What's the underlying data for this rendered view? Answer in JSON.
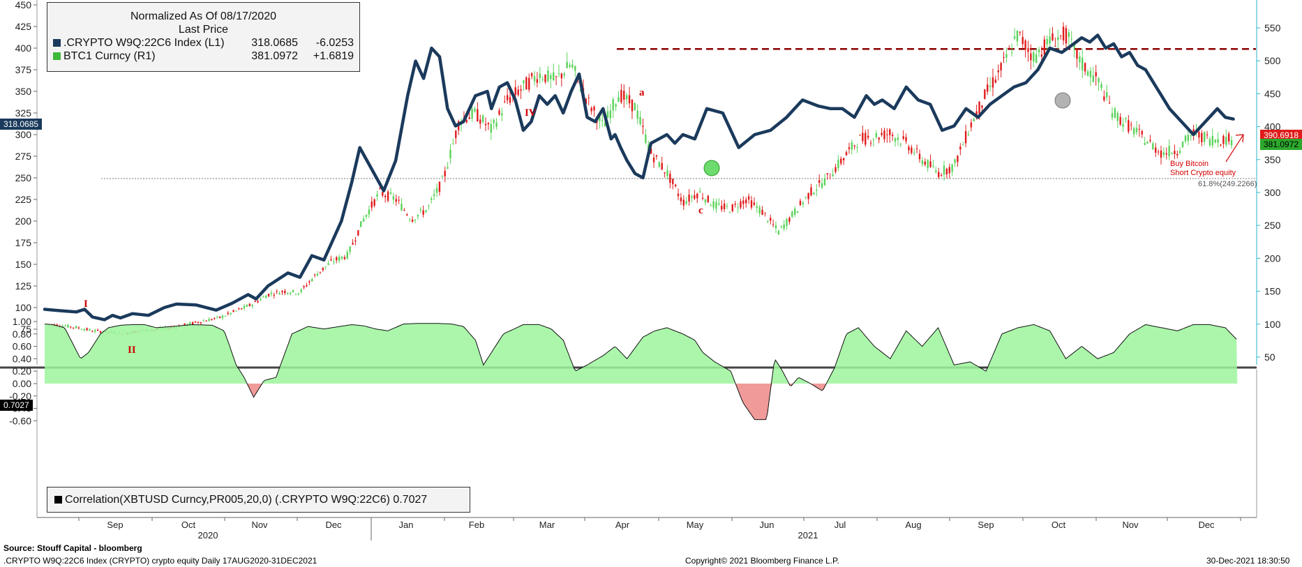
{
  "legend": {
    "title": "Normalized As Of 08/17/2020",
    "subtitle": "Last Price",
    "rows": [
      {
        "name": ".CRYPTO W9Q:22C6 Index  (L1)",
        "last": "318.0685",
        "change": "-6.0253",
        "color": "#1b3a5c"
      },
      {
        "name": "BTC1 Curncy  (R1)",
        "last": "381.0972",
        "change": "+1.6819",
        "color": "#3cb83c"
      }
    ]
  },
  "corr_legend": {
    "text": "Correlation(XBTUSD Curncy,PR005,20,0) (.CRYPTO W9Q:22C6) 0.7027"
  },
  "tags": {
    "left_last": "318.0685",
    "right_last": "390.6918",
    "right_last2": "381.0972",
    "corr_last": "0.7027"
  },
  "annotations": {
    "wave_1": "I",
    "wave_2": "II",
    "wave_4": "IV",
    "wave_a": "a",
    "wave_c": "c",
    "note_line1": "Buy Bitcoin",
    "note_line2": "Short Crypto equity",
    "fib": "61.8%(249.2266)"
  },
  "footer": {
    "source": "Source: Stouff Capital - bloomberg",
    "left": ".CRYPTO W9Q:22C6 Index (CRYPTO) crypto equity  Daily 17AUG2020-31DEC2021",
    "center": "Copyright© 2021 Bloomberg Finance L.P.",
    "right": "30-Dec-2021 18:30:50"
  },
  "colors": {
    "index_line": "#1b3a5c",
    "btc_up": "#5ad35a",
    "btc_down": "#e01b1b",
    "corr_fill_pos": "#9cf59c",
    "corr_fill_neg": "#f08f8f",
    "resistance": "#8b0000",
    "right_axis": "#2ab6c8"
  },
  "chart_data": [
    {
      "type": "line",
      "title": "Normalized As Of 08/17/2020",
      "ylim_left": [
        60,
        450
      ],
      "ylim_right": [
        35,
        600
      ],
      "yticks_left": [
        75,
        100,
        125,
        150,
        175,
        200,
        225,
        250,
        275,
        300,
        325,
        350,
        375,
        400,
        425,
        450
      ],
      "yticks_right": [
        50,
        100,
        150,
        200,
        250,
        300,
        350,
        400,
        450,
        500,
        550
      ],
      "x_months": [
        "Sep",
        "Oct",
        "Nov",
        "Dec",
        "Jan",
        "Feb",
        "Mar",
        "Apr",
        "May",
        "Jun",
        "Jul",
        "Aug",
        "Sep",
        "Oct",
        "Nov",
        "Dec"
      ],
      "x_years": [
        "2020",
        "2021"
      ],
      "fib_level": 249.2266,
      "resistance_level_right": 518,
      "series": [
        {
          "name": ".CRYPTO W9Q:22C6 Index  (L1)",
          "axis": "left",
          "x": [
            0,
            12,
            25,
            40,
            50,
            60,
            75,
            85,
            95,
            110,
            130,
            150,
            165,
            190,
            215,
            235,
            255,
            265,
            280,
            305,
            320,
            335,
            350,
            372,
            385,
            395,
            410,
            425,
            440,
            455,
            465,
            475,
            485,
            495,
            505,
            515,
            525,
            540,
            555,
            560,
            570,
            580,
            590,
            600,
            610,
            620,
            630,
            640,
            650,
            660,
            670,
            680,
            690,
            700,
            710,
            715,
            722,
            730,
            740,
            750,
            760,
            770,
            780,
            790,
            800,
            815,
            830,
            850,
            870,
            890,
            910,
            930,
            950,
            970,
            985,
            1000,
            1015,
            1030,
            1040,
            1050,
            1065,
            1080,
            1095,
            1110,
            1125,
            1140,
            1155,
            1170,
            1185,
            1200,
            1215,
            1230,
            1245,
            1260,
            1275,
            1290,
            1300,
            1310,
            1320,
            1330,
            1340,
            1350,
            1360,
            1370,
            1380,
            1390,
            1400,
            1410,
            1420,
            1430,
            1440,
            1450,
            1460,
            1470,
            1480,
            1490
          ],
          "values": [
            98,
            97,
            96,
            95,
            98,
            89,
            86,
            91,
            88,
            93,
            91,
            100,
            104,
            103,
            97,
            105,
            115,
            110,
            125,
            140,
            135,
            160,
            155,
            200,
            245,
            285,
            260,
            235,
            270,
            345,
            385,
            365,
            400,
            390,
            330,
            310,
            315,
            345,
            350,
            330,
            355,
            360,
            340,
            305,
            315,
            345,
            335,
            345,
            325,
            350,
            370,
            320,
            315,
            330,
            295,
            300,
            285,
            270,
            255,
            250,
            290,
            295,
            300,
            290,
            300,
            295,
            330,
            325,
            285,
            300,
            305,
            320,
            340,
            333,
            330,
            330,
            320,
            345,
            335,
            340,
            330,
            355,
            340,
            335,
            305,
            310,
            330,
            320,
            335,
            345,
            355,
            360,
            375,
            400,
            395,
            405,
            412,
            407,
            415,
            400,
            405,
            390,
            395,
            380,
            375,
            360,
            345,
            330,
            320,
            310,
            300,
            310,
            320,
            330,
            320,
            318
          ]
        },
        {
          "name": "BTC1 Curncy  (R1)",
          "axis": "right",
          "x": [
            0,
            20,
            40,
            60,
            80,
            100,
            120,
            140,
            160,
            180,
            200,
            220,
            240,
            260,
            280,
            300,
            320,
            340,
            360,
            380,
            400,
            420,
            440,
            460,
            480,
            500,
            520,
            540,
            560,
            580,
            600,
            620,
            640,
            660,
            680,
            700,
            720,
            740,
            760,
            780,
            800,
            820,
            840,
            860,
            880,
            900,
            920,
            940,
            960,
            980,
            1000,
            1020,
            1040,
            1060,
            1080,
            1100,
            1120,
            1140,
            1160,
            1180,
            1200,
            1220,
            1240,
            1260,
            1280,
            1300,
            1320,
            1340,
            1360,
            1380,
            1400,
            1420,
            1440,
            1460,
            1490
          ],
          "values": [
            100,
            98,
            95,
            90,
            88,
            86,
            90,
            92,
            95,
            100,
            105,
            110,
            120,
            130,
            145,
            150,
            148,
            175,
            195,
            205,
            260,
            300,
            290,
            260,
            275,
            320,
            410,
            420,
            395,
            440,
            460,
            480,
            470,
            495,
            440,
            400,
            450,
            430,
            360,
            330,
            285,
            300,
            280,
            275,
            290,
            270,
            240,
            270,
            300,
            320,
            350,
            380,
            385,
            390,
            375,
            350,
            330,
            340,
            400,
            450,
            490,
            540,
            505,
            530,
            540,
            495,
            470,
            420,
            400,
            380,
            360,
            365,
            390,
            381,
            381
          ]
        }
      ]
    },
    {
      "type": "area",
      "title": "",
      "ylim": [
        -0.7,
        1.05
      ],
      "yticks": [
        1.0,
        0.8,
        0.6,
        0.4,
        0.2,
        0.0,
        -0.2,
        -0.4,
        -0.6
      ],
      "series": [
        {
          "name": "Correlation(XBTUSD Curncy,PR005,20,0) (.CRYPTO W9Q:22C6)",
          "x": [
            0,
            10,
            25,
            35,
            45,
            55,
            70,
            80,
            95,
            110,
            125,
            140,
            160,
            185,
            210,
            225,
            232,
            240,
            250,
            262,
            275,
            290,
            310,
            330,
            350,
            370,
            385,
            400,
            415,
            430,
            450,
            470,
            490,
            510,
            525,
            540,
            550,
            575,
            600,
            620,
            635,
            650,
            665,
            680,
            700,
            715,
            730,
            750,
            765,
            780,
            800,
            815,
            825,
            840,
            860,
            875,
            890,
            905,
            915,
            925,
            935,
            945,
            960,
            975,
            990,
            1005,
            1020,
            1040,
            1060,
            1080,
            1100,
            1120,
            1140,
            1160,
            1180,
            1200,
            1220,
            1240,
            1260,
            1280,
            1300,
            1320,
            1340,
            1360,
            1380,
            1400,
            1420,
            1440,
            1460,
            1480,
            1495
          ],
          "values": [
            0.96,
            0.95,
            0.9,
            0.65,
            0.4,
            0.5,
            0.8,
            0.9,
            0.94,
            0.95,
            0.95,
            0.9,
            0.92,
            0.95,
            0.94,
            0.85,
            0.6,
            0.3,
            0.1,
            -0.22,
            0.05,
            0.1,
            0.8,
            0.92,
            0.88,
            0.92,
            0.95,
            0.93,
            0.88,
            0.85,
            0.96,
            0.97,
            0.97,
            0.96,
            0.92,
            0.7,
            0.3,
            0.8,
            0.95,
            0.95,
            0.88,
            0.7,
            0.2,
            0.3,
            0.45,
            0.6,
            0.4,
            0.75,
            0.85,
            0.9,
            0.8,
            0.7,
            0.5,
            0.35,
            0.2,
            -0.3,
            -0.58,
            -0.58,
            0.4,
            0.2,
            -0.05,
            0.1,
            0.0,
            -0.12,
            0.25,
            0.8,
            0.9,
            0.6,
            0.4,
            0.85,
            0.6,
            0.9,
            0.3,
            0.35,
            0.2,
            0.8,
            0.9,
            0.95,
            0.85,
            0.4,
            0.6,
            0.4,
            0.5,
            0.8,
            0.95,
            0.9,
            0.85,
            0.95,
            0.95,
            0.9,
            0.7
          ]
        }
      ],
      "last": 0.7027
    }
  ]
}
